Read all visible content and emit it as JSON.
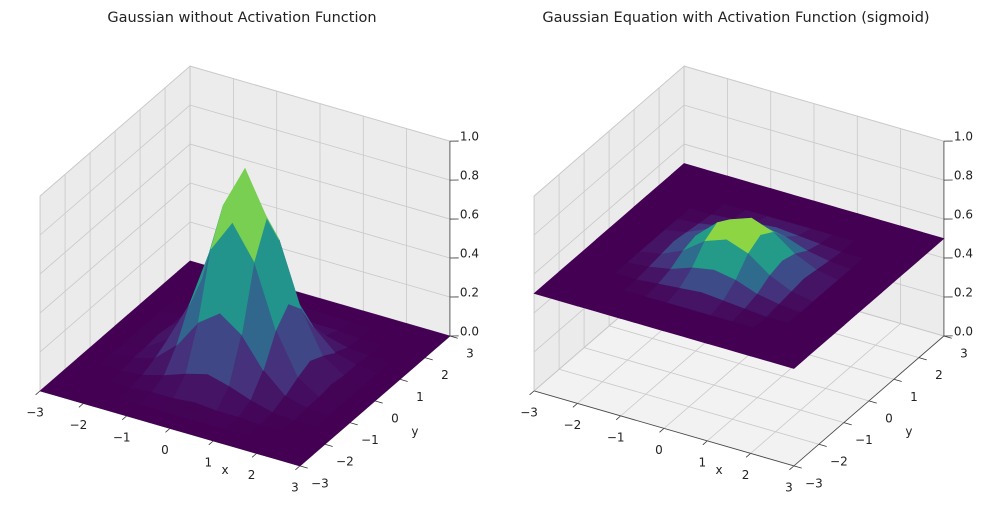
{
  "chart_data": [
    {
      "type": "surface",
      "title": "Gaussian without Activation Function",
      "xlabel": "x",
      "ylabel": "y",
      "colormap": "viridis",
      "x": [
        -3,
        -2.5,
        -2,
        -1.5,
        -1,
        -0.5,
        0,
        0.5,
        1,
        1.5,
        2,
        2.5,
        3
      ],
      "y": [
        -3,
        -2.5,
        -2,
        -1.5,
        -1,
        -0.5,
        0,
        0.5,
        1,
        1.5,
        2,
        2.5,
        3
      ],
      "z": [
        [
          0,
          0,
          0,
          0,
          0,
          0,
          0,
          0,
          0,
          0,
          0,
          0,
          0
        ],
        [
          0,
          0,
          0,
          0,
          0,
          0,
          0,
          0,
          0,
          0,
          0,
          0,
          0
        ],
        [
          0,
          0,
          0,
          0,
          0.01,
          0.01,
          0.02,
          0.01,
          0.01,
          0,
          0,
          0,
          0
        ],
        [
          0,
          0,
          0,
          0.01,
          0.04,
          0.08,
          0.11,
          0.08,
          0.04,
          0.01,
          0,
          0,
          0
        ],
        [
          0,
          0,
          0.01,
          0.04,
          0.14,
          0.29,
          0.37,
          0.29,
          0.14,
          0.04,
          0.01,
          0,
          0
        ],
        [
          0,
          0,
          0.01,
          0.08,
          0.29,
          0.61,
          0.78,
          0.61,
          0.29,
          0.08,
          0.01,
          0,
          0
        ],
        [
          0,
          0,
          0.02,
          0.11,
          0.37,
          0.78,
          1,
          0.78,
          0.37,
          0.11,
          0.02,
          0,
          0
        ],
        [
          0,
          0,
          0.01,
          0.08,
          0.29,
          0.61,
          0.78,
          0.61,
          0.29,
          0.08,
          0.01,
          0,
          0
        ],
        [
          0,
          0,
          0.01,
          0.04,
          0.14,
          0.29,
          0.37,
          0.29,
          0.14,
          0.04,
          0.01,
          0,
          0
        ],
        [
          0,
          0,
          0,
          0.01,
          0.04,
          0.08,
          0.11,
          0.08,
          0.04,
          0.01,
          0,
          0,
          0
        ],
        [
          0,
          0,
          0,
          0,
          0.01,
          0.01,
          0.02,
          0.01,
          0.01,
          0,
          0,
          0,
          0
        ],
        [
          0,
          0,
          0,
          0,
          0,
          0,
          0,
          0,
          0,
          0,
          0,
          0,
          0
        ],
        [
          0,
          0,
          0,
          0,
          0,
          0,
          0,
          0,
          0,
          0,
          0,
          0,
          0
        ]
      ],
      "xlim": [
        -3,
        3
      ],
      "ylim": [
        -3,
        3
      ],
      "zlim": [
        0,
        1
      ],
      "xticks": [
        {
          "value": -3,
          "label": "−3"
        },
        {
          "value": -2,
          "label": "−2"
        },
        {
          "value": -1,
          "label": "−1"
        },
        0,
        1,
        2,
        3
      ],
      "yticks": [
        {
          "value": -3,
          "label": "−3"
        },
        {
          "value": -2,
          "label": "−2"
        },
        {
          "value": -1,
          "label": "−1"
        },
        0,
        1,
        2,
        3
      ],
      "zticks": [
        {
          "value": 0,
          "label": "0.0"
        },
        0.2,
        0.4,
        0.6,
        0.8,
        {
          "value": 1,
          "label": "1.0"
        }
      ],
      "grid": true
    },
    {
      "type": "surface",
      "title": "Gaussian Equation with Activation Function (sigmoid)",
      "xlabel": "x",
      "ylabel": "y",
      "colormap": "viridis",
      "x": [
        -3,
        -2.5,
        -2,
        -1.5,
        -1,
        -0.5,
        0,
        0.5,
        1,
        1.5,
        2,
        2.5,
        3
      ],
      "y": [
        -3,
        -2.5,
        -2,
        -1.5,
        -1,
        -0.5,
        0,
        0.5,
        1,
        1.5,
        2,
        2.5,
        3
      ],
      "z": [
        [
          0.5,
          0.5,
          0.5,
          0.5,
          0.5,
          0.5,
          0.5,
          0.5,
          0.5,
          0.5,
          0.5,
          0.5,
          0.5
        ],
        [
          0.5,
          0.5,
          0.5,
          0.5,
          0.5,
          0.5,
          0.5,
          0.5,
          0.5,
          0.5,
          0.5,
          0.5,
          0.5
        ],
        [
          0.5,
          0.5,
          0.5,
          0.5,
          0.5,
          0.5,
          0.5,
          0.5,
          0.5,
          0.5,
          0.5,
          0.5,
          0.5
        ],
        [
          0.5,
          0.5,
          0.5,
          0.5,
          0.51,
          0.52,
          0.53,
          0.52,
          0.51,
          0.5,
          0.5,
          0.5,
          0.5
        ],
        [
          0.5,
          0.5,
          0.5,
          0.51,
          0.53,
          0.57,
          0.59,
          0.57,
          0.53,
          0.51,
          0.5,
          0.5,
          0.5
        ],
        [
          0.5,
          0.5,
          0.5,
          0.52,
          0.57,
          0.65,
          0.69,
          0.65,
          0.57,
          0.52,
          0.5,
          0.5,
          0.5
        ],
        [
          0.5,
          0.5,
          0.5,
          0.53,
          0.59,
          0.69,
          0.73,
          0.69,
          0.59,
          0.53,
          0.5,
          0.5,
          0.5
        ],
        [
          0.5,
          0.5,
          0.5,
          0.52,
          0.57,
          0.65,
          0.69,
          0.65,
          0.57,
          0.52,
          0.5,
          0.5,
          0.5
        ],
        [
          0.5,
          0.5,
          0.5,
          0.51,
          0.53,
          0.57,
          0.59,
          0.57,
          0.53,
          0.51,
          0.5,
          0.5,
          0.5
        ],
        [
          0.5,
          0.5,
          0.5,
          0.5,
          0.51,
          0.52,
          0.53,
          0.52,
          0.51,
          0.5,
          0.5,
          0.5,
          0.5
        ],
        [
          0.5,
          0.5,
          0.5,
          0.5,
          0.5,
          0.5,
          0.5,
          0.5,
          0.5,
          0.5,
          0.5,
          0.5,
          0.5
        ],
        [
          0.5,
          0.5,
          0.5,
          0.5,
          0.5,
          0.5,
          0.5,
          0.5,
          0.5,
          0.5,
          0.5,
          0.5,
          0.5
        ],
        [
          0.5,
          0.5,
          0.5,
          0.5,
          0.5,
          0.5,
          0.5,
          0.5,
          0.5,
          0.5,
          0.5,
          0.5,
          0.5
        ]
      ],
      "xlim": [
        -3,
        3
      ],
      "ylim": [
        -3,
        3
      ],
      "zlim": [
        0,
        1
      ],
      "xticks": [
        {
          "value": -3,
          "label": "−3"
        },
        {
          "value": -2,
          "label": "−2"
        },
        {
          "value": -1,
          "label": "−1"
        },
        0,
        1,
        2,
        3
      ],
      "yticks": [
        {
          "value": -3,
          "label": "−3"
        },
        {
          "value": -2,
          "label": "−2"
        },
        {
          "value": -1,
          "label": "−1"
        },
        0,
        1,
        2,
        3
      ],
      "zticks": [
        {
          "value": 0,
          "label": "0.0"
        },
        0.2,
        0.4,
        0.6,
        0.8,
        {
          "value": 1,
          "label": "1.0"
        }
      ],
      "grid": true
    }
  ]
}
